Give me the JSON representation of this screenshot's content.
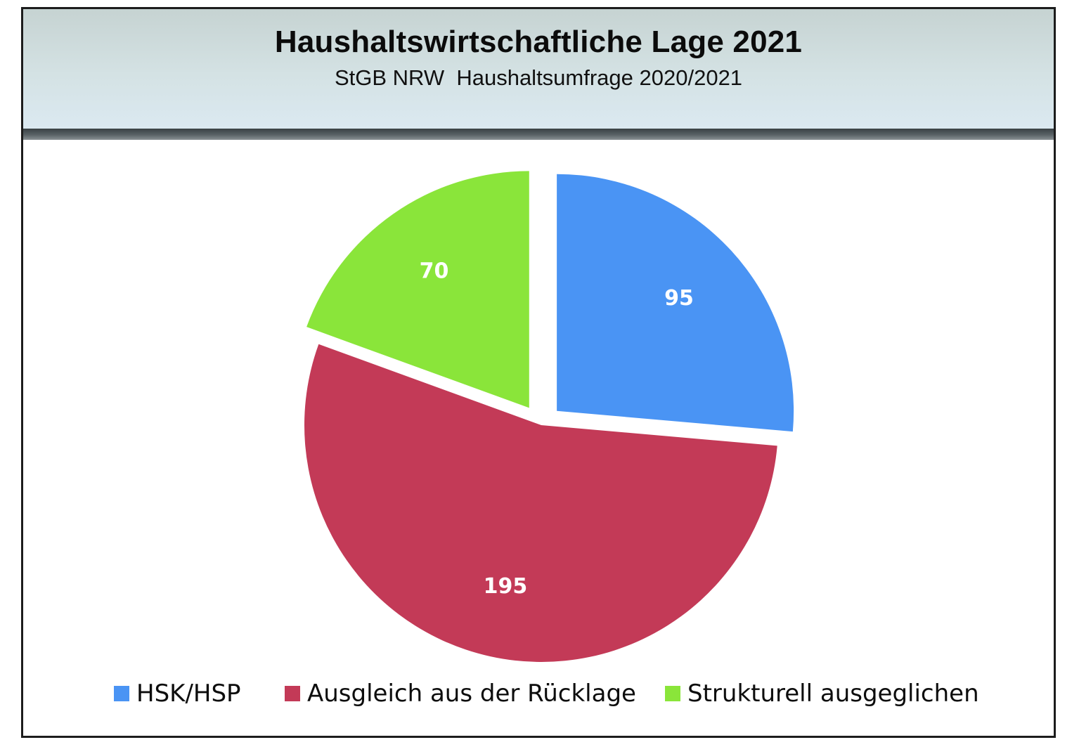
{
  "chart_data": {
    "type": "pie",
    "title": "Haushaltswirtschaftliche Lage 2021",
    "subtitle": "StGB NRW  Haushaltsumfrage 2020/2021",
    "slices": [
      {
        "label": "HSK/HSP",
        "value": 95,
        "color": "#4a94f4",
        "exploded": true
      },
      {
        "label": "Ausgleich aus der Rücklage",
        "value": 195,
        "color": "#c33a57",
        "exploded": false
      },
      {
        "label": "Strukturell ausgeglichen",
        "value": 70,
        "color": "#8ae53a",
        "exploded": true
      }
    ],
    "data_labels_visible": true,
    "legend_position": "bottom"
  }
}
